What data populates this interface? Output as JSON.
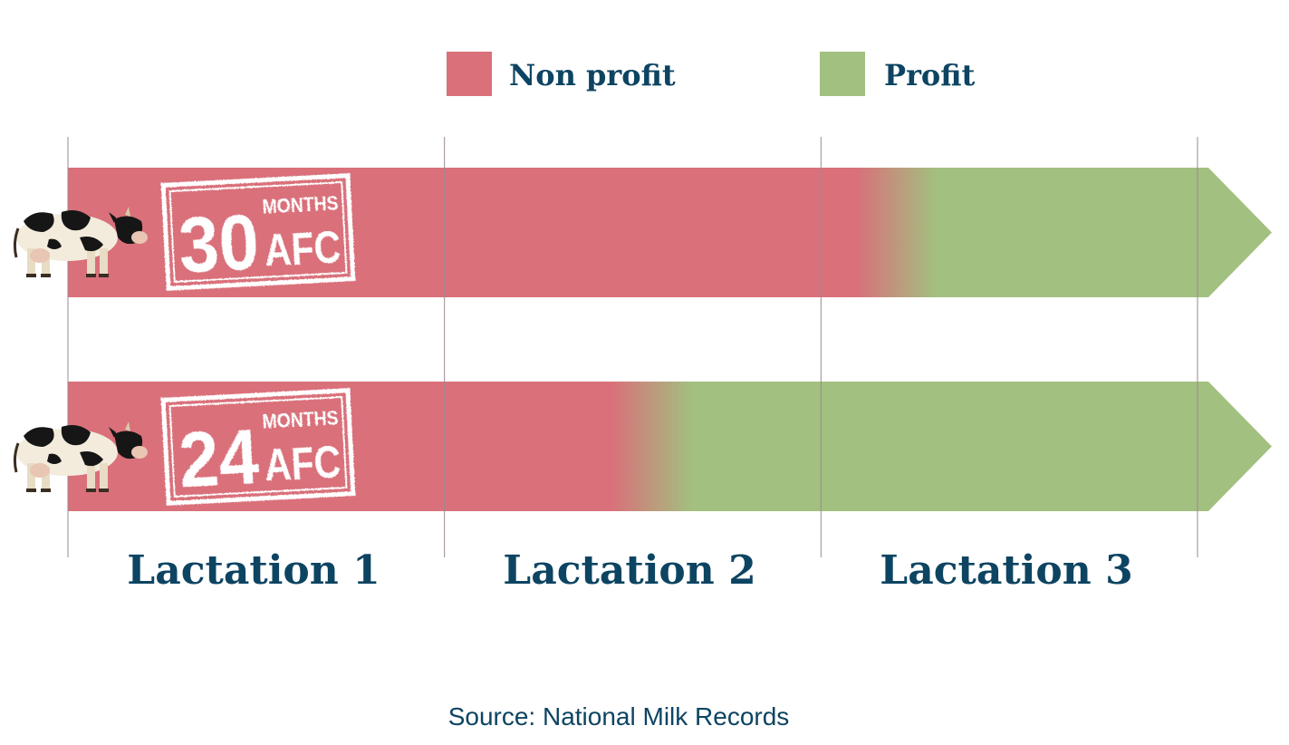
{
  "legend": {
    "items": [
      {
        "label": "Non profit",
        "color": "#d9707a"
      },
      {
        "label": "Profit",
        "color": "#a2c07f"
      }
    ]
  },
  "footer": {
    "source": "Source: National Milk Records"
  },
  "chart_data": {
    "type": "bar",
    "orientation": "horizontal",
    "x_unit": "lactation",
    "x_range": [
      0,
      3
    ],
    "categories": [
      "Lactation 1",
      "Lactation 2",
      "Lactation 3"
    ],
    "colors": {
      "non_profit": "#d9707a",
      "profit": "#a2c07f"
    },
    "rows": [
      {
        "stamp": {
          "number": "30",
          "unit_top": "MONTHS",
          "unit_bottom": "AFC"
        },
        "icon": "cow-icon",
        "profit_start": 2.2
      },
      {
        "stamp": {
          "number": "24",
          "unit_top": "MONTHS",
          "unit_bottom": "AFC"
        },
        "icon": "cow-icon",
        "profit_start": 1.55
      }
    ]
  }
}
